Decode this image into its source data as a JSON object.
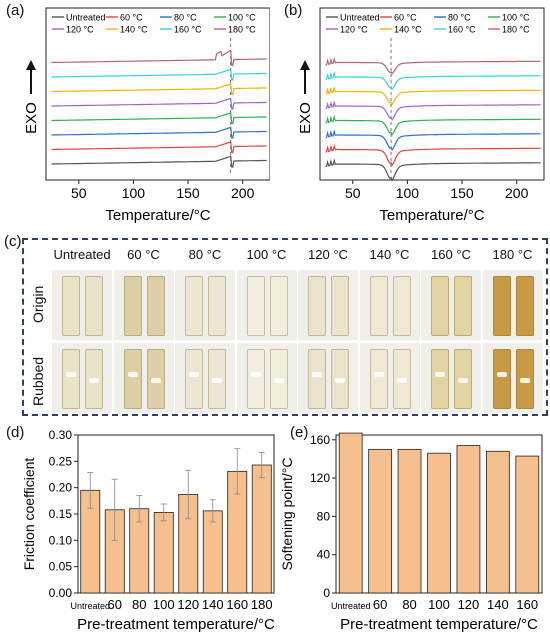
{
  "panels": {
    "a": "(a)",
    "b": "(b)",
    "c": "(c)",
    "d": "(d)",
    "e": "(e)"
  },
  "dsc_axes": {
    "xlabel": "Temperature/°C",
    "ylabel": "EXO",
    "xticks": [
      "50",
      "100",
      "150",
      "200"
    ]
  },
  "legend_entries": [
    "Untreated",
    "60 °C",
    "80 °C",
    "100 °C",
    "120 °C",
    "140 °C",
    "160 °C",
    "180 °C"
  ],
  "colors": {
    "series": [
      "#555555",
      "#e8423c",
      "#2f6fd8",
      "#31b24a",
      "#a562c8",
      "#f2b400",
      "#2fd5e6",
      "#b9636b"
    ],
    "bar": "#f5c08e",
    "frame": "#2f3f6a"
  },
  "photo_grid": {
    "columns": [
      "Untreated",
      "60 °C",
      "80 °C",
      "100 °C",
      "120 °C",
      "140 °C",
      "160 °C",
      "180 °C"
    ],
    "rows": [
      "Origin",
      "Rubbed"
    ],
    "sample_tints": [
      "#e9e3c8",
      "#ddd0a6",
      "#ece6d2",
      "#f2eedd",
      "#ebe4cc",
      "#efe9d4",
      "#e2d3a2",
      "#c99a45"
    ]
  },
  "chart_data": [
    {
      "type": "line",
      "panel": "(a)",
      "title": "",
      "xlabel": "Temperature/°C",
      "ylabel": "EXO",
      "xlim": [
        20,
        225
      ],
      "xticks": [
        50,
        100,
        150,
        200
      ],
      "series": [
        {
          "name": "Untreated",
          "peak_x": 189
        },
        {
          "name": "60 °C",
          "peak_x": 189
        },
        {
          "name": "80 °C",
          "peak_x": 189
        },
        {
          "name": "100 °C",
          "peak_x": 189
        },
        {
          "name": "120 °C",
          "peak_x": 189
        },
        {
          "name": "140 °C",
          "peak_x": 189
        },
        {
          "name": "160 °C",
          "peak_x": 189
        },
        {
          "name": "180 °C",
          "peak_x": 189
        }
      ]
    },
    {
      "type": "line",
      "panel": "(b)",
      "title": "",
      "xlabel": "Temperature/°C",
      "ylabel": "EXO",
      "xlim": [
        20,
        225
      ],
      "xticks": [
        50,
        100,
        150,
        200
      ],
      "series": [
        {
          "name": "Untreated",
          "dip_x": 85
        },
        {
          "name": "60 °C",
          "dip_x": 85
        },
        {
          "name": "80 °C",
          "dip_x": 85
        },
        {
          "name": "100 °C",
          "dip_x": 85
        },
        {
          "name": "120 °C",
          "dip_x": 85
        },
        {
          "name": "140 °C",
          "dip_x": 85
        },
        {
          "name": "160 °C",
          "dip_x": 85
        },
        {
          "name": "180 °C",
          "dip_x": 85
        }
      ]
    },
    {
      "type": "bar",
      "panel": "(d)",
      "title": "",
      "xlabel": "Pre-treatment temperature/°C",
      "ylabel": "Friction coefficient",
      "categories": [
        "Untreated",
        "60",
        "80",
        "100",
        "120",
        "140",
        "160",
        "180"
      ],
      "values": [
        0.195,
        0.158,
        0.16,
        0.153,
        0.187,
        0.156,
        0.231,
        0.243
      ],
      "errors": [
        0.034,
        0.058,
        0.025,
        0.016,
        0.046,
        0.021,
        0.043,
        0.024
      ],
      "ylim": [
        0.0,
        0.3
      ],
      "yticks": [
        "0.00",
        "0.05",
        "0.10",
        "0.15",
        "0.20",
        "0.25",
        "0.30"
      ]
    },
    {
      "type": "bar",
      "panel": "(e)",
      "title": "",
      "xlabel": "Pre-treatment temperature/°C",
      "ylabel": "Softening point/°C",
      "categories": [
        "Untreated",
        "60",
        "80",
        "100",
        "120",
        "140",
        "160"
      ],
      "values": [
        167,
        150,
        150,
        146,
        154,
        148,
        143
      ],
      "ylim": [
        0,
        165
      ],
      "yticks": [
        "0",
        "40",
        "80",
        "120",
        "160"
      ]
    }
  ]
}
